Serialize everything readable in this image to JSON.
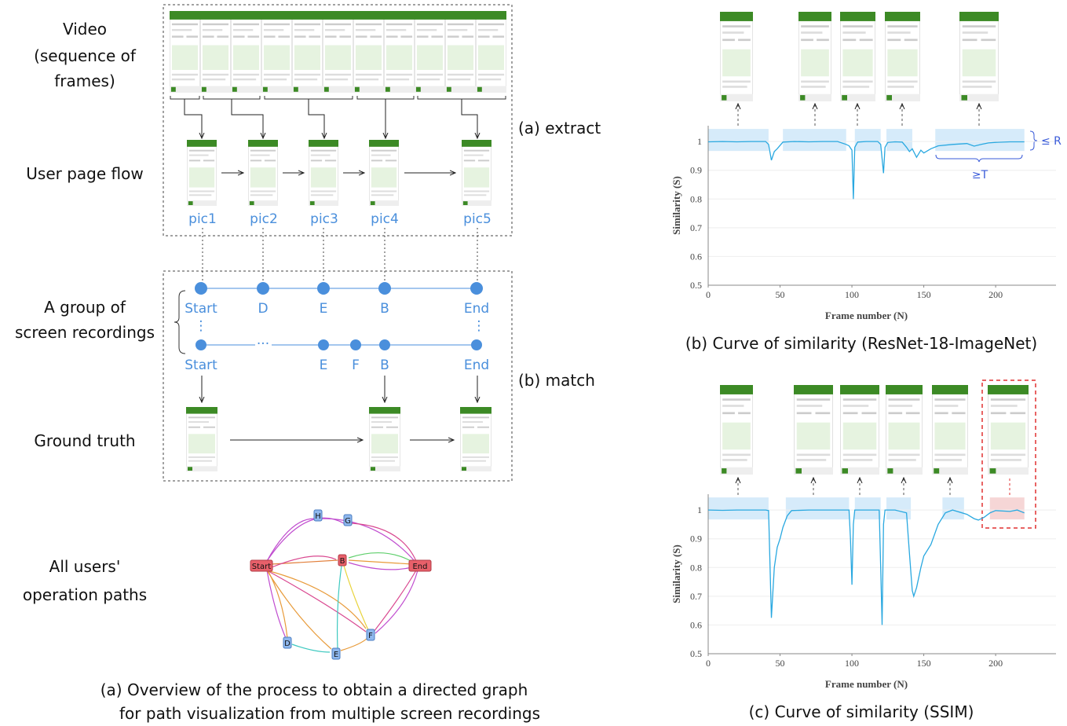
{
  "row_labels": [
    [
      "Video",
      "(sequence of",
      "frames)"
    ],
    [
      "User page flow"
    ],
    [
      "A group of",
      "screen recordings"
    ],
    [
      "Ground truth"
    ],
    [
      "All users'",
      "operation paths"
    ]
  ],
  "steps": [
    "(a) extract",
    "(b) match"
  ],
  "pics": [
    "pic1",
    "pic2",
    "pic3",
    "pic4",
    "pic5"
  ],
  "path1": [
    "Start",
    "D",
    "E",
    "B",
    "End"
  ],
  "path2": [
    "Start",
    "···",
    "E",
    "F",
    "B",
    "End"
  ],
  "ellipsis": "⋮",
  "graph_nodes": [
    "H",
    "G",
    "Start",
    "B",
    "End",
    "D",
    "E",
    "F"
  ],
  "caption": [
    "(a) Overview of the process to obtain a directed graph",
    "for path visualization from multiple screen recordings"
  ],
  "chart_data": [
    {
      "type": "line",
      "caption": "(b) Curve of similarity (ResNet-18-ImageNet)",
      "xlabel": "Frame number (N)",
      "ylabel": "Similarity (S)",
      "xlim": [
        0,
        242
      ],
      "ylim": [
        0.5,
        1.055
      ],
      "xticks": [
        0,
        50,
        100,
        150,
        200
      ],
      "yticks": [
        0.5,
        0.6,
        0.7,
        0.8,
        0.9,
        1
      ],
      "color": "#29a8e0",
      "annotations": [
        "≤ R",
        "≥T"
      ],
      "highlight_color": "#d6ebfa",
      "highlight_ranges": [
        [
          0,
          42
        ],
        [
          52,
          96
        ],
        [
          102,
          120
        ],
        [
          124,
          142
        ],
        [
          158,
          220
        ]
      ],
      "x": [
        0,
        10,
        20,
        30,
        40,
        42,
        44,
        46,
        48,
        52,
        60,
        70,
        80,
        90,
        96,
        98,
        100,
        101,
        102,
        104,
        110,
        118,
        120,
        122,
        123,
        125,
        130,
        135,
        138,
        140,
        142,
        145,
        148,
        150,
        155,
        160,
        170,
        180,
        185,
        190,
        195,
        200,
        210,
        220
      ],
      "values": [
        0.999,
        1,
        0.999,
        1,
        1,
        0.99,
        0.935,
        0.965,
        0.975,
        0.998,
        1,
        0.999,
        1,
        1,
        0.99,
        0.985,
        0.97,
        0.8,
        0.98,
        0.998,
        1,
        1,
        0.99,
        0.89,
        0.98,
        0.997,
        0.999,
        0.998,
        0.98,
        0.965,
        0.975,
        0.945,
        0.97,
        0.96,
        0.975,
        0.985,
        0.99,
        0.993,
        0.984,
        0.99,
        0.995,
        0.997,
        0.999,
        0.999
      ]
    },
    {
      "type": "line",
      "caption": "(c) Curve of similarity (SSIM)",
      "xlabel": "Frame number (N)",
      "ylabel": "Similarity (S)",
      "xlim": [
        0,
        242
      ],
      "ylim": [
        0.5,
        1.055
      ],
      "xticks": [
        0,
        50,
        100,
        150,
        200
      ],
      "yticks": [
        0.5,
        0.6,
        0.7,
        0.8,
        0.9,
        1
      ],
      "color": "#29a8e0",
      "highlight_color": "#d6ebfa",
      "alert_color": "#f6d6d6",
      "highlight_ranges": [
        [
          0,
          42
        ],
        [
          54,
          98
        ],
        [
          102,
          120
        ],
        [
          124,
          141
        ],
        [
          163,
          178
        ]
      ],
      "alert_range": [
        196,
        220
      ],
      "x": [
        0,
        10,
        20,
        30,
        40,
        42,
        44,
        46,
        48,
        50,
        52,
        55,
        58,
        70,
        80,
        90,
        98,
        99,
        100,
        101,
        102,
        110,
        119,
        120,
        121,
        122,
        123,
        130,
        138,
        140,
        142,
        143,
        145,
        148,
        150,
        155,
        160,
        165,
        170,
        180,
        185,
        188,
        192,
        196,
        200,
        210,
        215,
        220
      ],
      "values": [
        1,
        0.999,
        1,
        1,
        1,
        0.998,
        0.625,
        0.8,
        0.87,
        0.9,
        0.94,
        0.98,
        0.998,
        1,
        1,
        1,
        1,
        0.9,
        0.74,
        0.95,
        1,
        1,
        1,
        0.8,
        0.6,
        0.95,
        1,
        1,
        0.99,
        0.85,
        0.72,
        0.7,
        0.73,
        0.8,
        0.84,
        0.88,
        0.95,
        0.99,
        1,
        0.985,
        0.97,
        0.965,
        0.975,
        0.99,
        0.998,
        0.995,
        1,
        0.99
      ]
    }
  ]
}
